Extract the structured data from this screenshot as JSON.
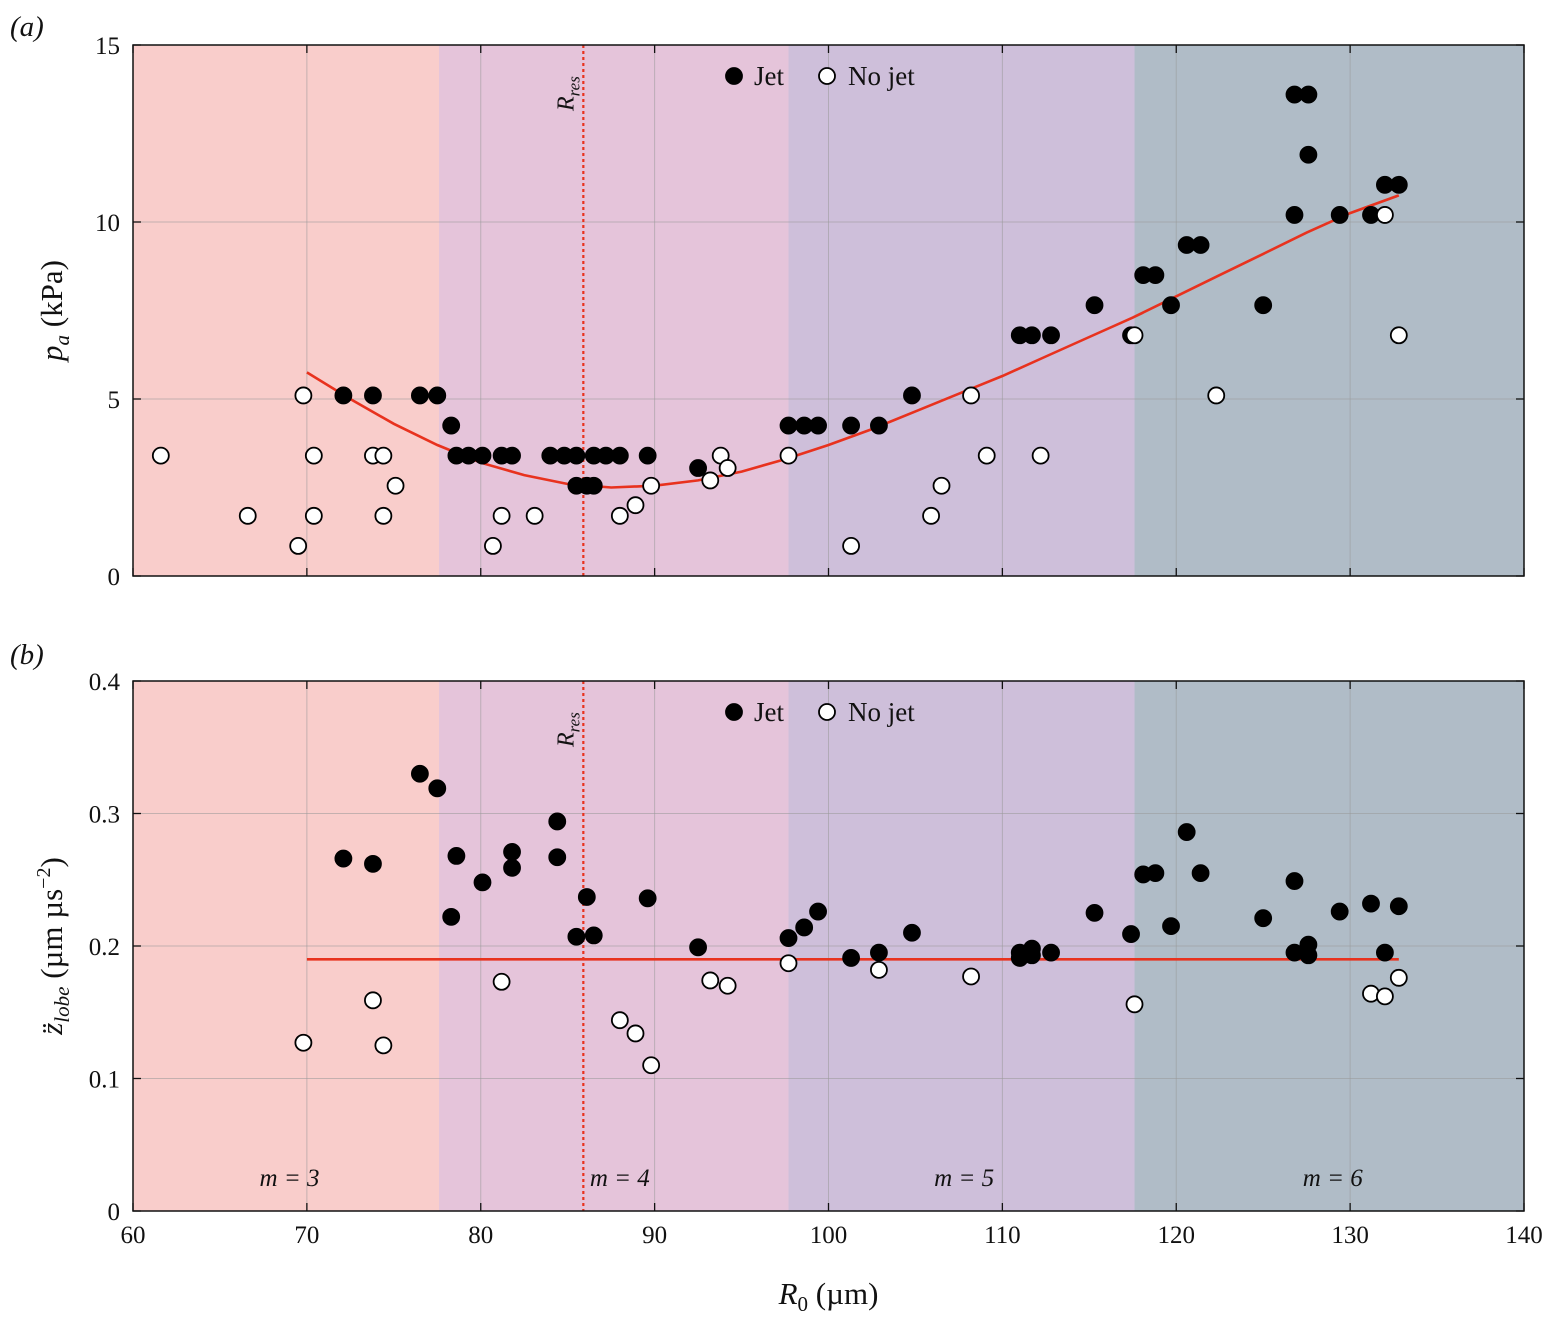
{
  "colors": {
    "region_m3": "#f9cdcb",
    "region_m4": "#e5c4da",
    "region_m5": "#cebfda",
    "region_m6": "#b0bcc7",
    "fit_line": "#e8321e",
    "rres_line": "#e8321e",
    "jet_marker": "#000000",
    "nojet_marker_fill": "#ffffff",
    "nojet_marker_stroke": "#000000",
    "grid": "#999999"
  },
  "chart_data": [
    {
      "type": "scatter",
      "panel_label": "(a)",
      "ylabel": {
        "base": "p",
        "sub": "a",
        "unit": " (kPa)"
      },
      "xlim": [
        60,
        140
      ],
      "ylim": [
        0,
        15
      ],
      "xticks": [
        60,
        70,
        80,
        90,
        100,
        110,
        120,
        130,
        140
      ],
      "yticks": [
        0,
        5,
        10,
        15
      ],
      "show_xtick_labels": false,
      "grid": true,
      "legend": {
        "position": "top-center",
        "jet_label": "Jet",
        "nojet_label": "No jet"
      },
      "regions": [
        {
          "x0": 60,
          "x1": 77.6,
          "color_key": "region_m3"
        },
        {
          "x0": 77.6,
          "x1": 97.7,
          "color_key": "region_m4"
        },
        {
          "x0": 97.7,
          "x1": 117.6,
          "color_key": "region_m5"
        },
        {
          "x0": 117.6,
          "x1": 140,
          "color_key": "region_m6"
        }
      ],
      "r_res": {
        "x": 85.9,
        "label_base": "R",
        "label_sub": "res"
      },
      "series": [
        {
          "name": "Jet",
          "marker": "filled",
          "points": [
            [
              72.1,
              5.1
            ],
            [
              73.8,
              5.1
            ],
            [
              76.5,
              5.1
            ],
            [
              77.5,
              5.1
            ],
            [
              78.3,
              4.25
            ],
            [
              78.6,
              3.4
            ],
            [
              79.3,
              3.4
            ],
            [
              80.1,
              3.4
            ],
            [
              81.2,
              3.4
            ],
            [
              81.8,
              3.4
            ],
            [
              84.0,
              3.4
            ],
            [
              84.8,
              3.4
            ],
            [
              85.5,
              3.4
            ],
            [
              85.5,
              2.55
            ],
            [
              86.1,
              2.55
            ],
            [
              86.5,
              2.55
            ],
            [
              86.5,
              3.4
            ],
            [
              87.2,
              3.4
            ],
            [
              88.0,
              3.4
            ],
            [
              89.6,
              3.4
            ],
            [
              92.5,
              3.05
            ],
            [
              97.7,
              4.25
            ],
            [
              98.6,
              4.25
            ],
            [
              99.4,
              4.25
            ],
            [
              101.3,
              4.25
            ],
            [
              102.9,
              4.25
            ],
            [
              104.8,
              5.1
            ],
            [
              111.0,
              6.8
            ],
            [
              111.7,
              6.8
            ],
            [
              112.8,
              6.8
            ],
            [
              115.3,
              7.65
            ],
            [
              117.4,
              6.8
            ],
            [
              118.1,
              8.5
            ],
            [
              118.8,
              8.5
            ],
            [
              119.7,
              7.65
            ],
            [
              120.6,
              9.35
            ],
            [
              121.4,
              9.35
            ],
            [
              125.0,
              7.65
            ],
            [
              126.8,
              10.2
            ],
            [
              126.8,
              13.6
            ],
            [
              127.6,
              13.6
            ],
            [
              127.6,
              11.9
            ],
            [
              129.4,
              10.2
            ],
            [
              131.2,
              10.2
            ],
            [
              132.0,
              11.05
            ],
            [
              132.8,
              11.05
            ]
          ]
        },
        {
          "name": "No jet",
          "marker": "open",
          "points": [
            [
              61.6,
              3.4
            ],
            [
              66.6,
              1.7
            ],
            [
              69.5,
              0.85
            ],
            [
              69.8,
              5.1
            ],
            [
              70.4,
              3.4
            ],
            [
              70.4,
              1.7
            ],
            [
              73.8,
              3.4
            ],
            [
              74.4,
              3.4
            ],
            [
              74.4,
              1.7
            ],
            [
              75.1,
              2.55
            ],
            [
              80.7,
              0.85
            ],
            [
              81.2,
              1.7
            ],
            [
              83.1,
              1.7
            ],
            [
              88.0,
              1.7
            ],
            [
              88.9,
              2.0
            ],
            [
              89.8,
              2.55
            ],
            [
              93.2,
              2.7
            ],
            [
              93.8,
              3.4
            ],
            [
              94.2,
              3.05
            ],
            [
              97.7,
              3.4
            ],
            [
              101.3,
              0.85
            ],
            [
              105.9,
              1.7
            ],
            [
              106.5,
              2.55
            ],
            [
              108.2,
              5.1
            ],
            [
              109.1,
              3.4
            ],
            [
              112.2,
              3.4
            ],
            [
              117.6,
              6.8
            ],
            [
              122.3,
              5.1
            ],
            [
              132.0,
              10.2
            ],
            [
              132.8,
              6.8
            ]
          ]
        }
      ],
      "fit": {
        "type": "quadratic",
        "points": [
          [
            70.0,
            5.75
          ],
          [
            72.5,
            5.0
          ],
          [
            75.0,
            4.3
          ],
          [
            77.5,
            3.7
          ],
          [
            80.0,
            3.2
          ],
          [
            82.5,
            2.85
          ],
          [
            85.0,
            2.6
          ],
          [
            87.5,
            2.5
          ],
          [
            90.0,
            2.55
          ],
          [
            92.5,
            2.7
          ],
          [
            95.0,
            2.95
          ],
          [
            97.5,
            3.3
          ],
          [
            100.0,
            3.7
          ],
          [
            102.5,
            4.15
          ],
          [
            105.0,
            4.65
          ],
          [
            107.5,
            5.15
          ],
          [
            110.0,
            5.65
          ],
          [
            112.5,
            6.2
          ],
          [
            115.0,
            6.75
          ],
          [
            117.5,
            7.3
          ],
          [
            120.0,
            7.9
          ],
          [
            122.5,
            8.5
          ],
          [
            125.0,
            9.1
          ],
          [
            127.5,
            9.7
          ],
          [
            130.0,
            10.25
          ],
          [
            132.8,
            10.75
          ]
        ]
      }
    },
    {
      "type": "scatter",
      "panel_label": "(b)",
      "ylabel": {
        "base": "z̈",
        "sub": "lobe",
        "unit": " (µm µs",
        "sup": "−2",
        "close": ")"
      },
      "xlabel": {
        "base": "R",
        "sub": "0",
        "unit": " (µm)"
      },
      "xlim": [
        60,
        140
      ],
      "ylim": [
        0,
        0.4
      ],
      "xticks": [
        60,
        70,
        80,
        90,
        100,
        110,
        120,
        130,
        140
      ],
      "yticks": [
        0,
        0.1,
        0.2,
        0.3,
        0.4
      ],
      "ytick_labels": [
        "0",
        "0.1",
        "0.2",
        "0.3",
        "0.4"
      ],
      "show_xtick_labels": true,
      "grid": true,
      "legend": {
        "position": "top-center",
        "jet_label": "Jet",
        "nojet_label": "No jet"
      },
      "regions": [
        {
          "x0": 60,
          "x1": 77.6,
          "color_key": "region_m3",
          "label": "m = 3",
          "label_x": 69.0
        },
        {
          "x0": 77.6,
          "x1": 97.7,
          "color_key": "region_m4",
          "label": "m = 4",
          "label_x": 88.0
        },
        {
          "x0": 97.7,
          "x1": 117.6,
          "color_key": "region_m5",
          "label": "m = 5",
          "label_x": 107.8
        },
        {
          "x0": 117.6,
          "x1": 140,
          "color_key": "region_m6",
          "label": "m = 6",
          "label_x": 129.0
        }
      ],
      "r_res": {
        "x": 85.9,
        "label_base": "R",
        "label_sub": "res"
      },
      "series": [
        {
          "name": "Jet",
          "marker": "filled",
          "points": [
            [
              72.1,
              0.266
            ],
            [
              73.8,
              0.262
            ],
            [
              76.5,
              0.33
            ],
            [
              77.5,
              0.319
            ],
            [
              78.3,
              0.222
            ],
            [
              78.6,
              0.268
            ],
            [
              80.1,
              0.248
            ],
            [
              81.8,
              0.271
            ],
            [
              81.8,
              0.259
            ],
            [
              84.4,
              0.294
            ],
            [
              84.4,
              0.267
            ],
            [
              85.5,
              0.207
            ],
            [
              86.1,
              0.237
            ],
            [
              86.5,
              0.208
            ],
            [
              89.6,
              0.236
            ],
            [
              92.5,
              0.199
            ],
            [
              97.7,
              0.206
            ],
            [
              98.6,
              0.214
            ],
            [
              99.4,
              0.226
            ],
            [
              101.3,
              0.191
            ],
            [
              102.9,
              0.195
            ],
            [
              104.8,
              0.21
            ],
            [
              111.0,
              0.191
            ],
            [
              111.0,
              0.195
            ],
            [
              111.7,
              0.198
            ],
            [
              111.7,
              0.193
            ],
            [
              112.8,
              0.195
            ],
            [
              115.3,
              0.225
            ],
            [
              117.4,
              0.209
            ],
            [
              118.1,
              0.254
            ],
            [
              118.8,
              0.255
            ],
            [
              119.7,
              0.215
            ],
            [
              120.6,
              0.286
            ],
            [
              121.4,
              0.255
            ],
            [
              125.0,
              0.221
            ],
            [
              126.8,
              0.249
            ],
            [
              126.8,
              0.195
            ],
            [
              127.6,
              0.201
            ],
            [
              127.6,
              0.193
            ],
            [
              129.4,
              0.226
            ],
            [
              131.2,
              0.232
            ],
            [
              132.0,
              0.195
            ],
            [
              132.8,
              0.23
            ]
          ]
        },
        {
          "name": "No jet",
          "marker": "open",
          "points": [
            [
              69.8,
              0.127
            ],
            [
              73.8,
              0.159
            ],
            [
              74.4,
              0.125
            ],
            [
              81.2,
              0.173
            ],
            [
              88.0,
              0.144
            ],
            [
              88.9,
              0.134
            ],
            [
              89.8,
              0.11
            ],
            [
              93.2,
              0.174
            ],
            [
              94.2,
              0.17
            ],
            [
              97.7,
              0.187
            ],
            [
              102.9,
              0.182
            ],
            [
              108.2,
              0.177
            ],
            [
              117.6,
              0.156
            ],
            [
              131.2,
              0.164
            ],
            [
              132.0,
              0.162
            ],
            [
              132.8,
              0.176
            ]
          ]
        }
      ],
      "fit": {
        "type": "constant",
        "points": [
          [
            70.0,
            0.19
          ],
          [
            132.8,
            0.19
          ]
        ]
      }
    }
  ]
}
